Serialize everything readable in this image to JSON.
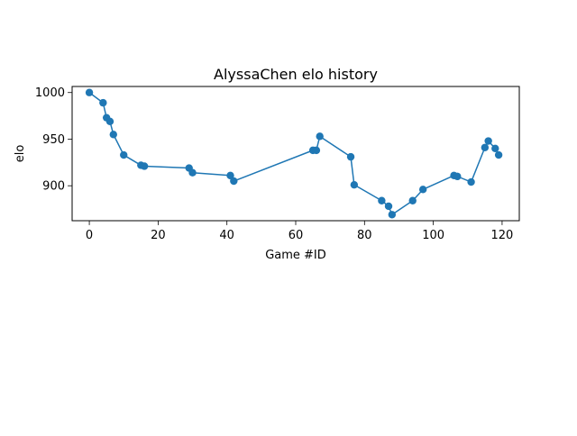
{
  "chart_data": {
    "type": "line",
    "title": "AlyssaChen elo history",
    "xlabel": "Game #ID",
    "ylabel": "elo",
    "xlim": [
      -5,
      125
    ],
    "ylim": [
      862.5,
      1006.5
    ],
    "xticks": [
      0,
      20,
      40,
      60,
      80,
      100,
      120
    ],
    "xtick_labels": [
      "0",
      "20",
      "40",
      "60",
      "80",
      "100",
      "120"
    ],
    "yticks": [
      900,
      950,
      1000
    ],
    "ytick_labels": [
      "900",
      "950",
      "1000"
    ],
    "grid": false,
    "marker": "circle",
    "color": "#1f77b4",
    "series": [
      {
        "x": [
          0,
          4,
          5,
          6,
          7,
          10,
          15,
          16,
          29,
          30,
          41,
          42,
          65,
          66,
          67,
          76,
          77,
          85,
          87,
          88,
          94,
          97,
          106,
          107,
          111,
          115,
          116,
          118,
          119
        ],
        "y": [
          1000,
          989,
          973,
          969,
          955,
          933,
          922,
          921,
          919,
          914,
          911,
          905,
          938,
          938,
          953,
          931,
          901,
          884,
          878,
          869,
          884,
          896,
          911,
          910,
          904,
          941,
          948,
          940,
          933
        ]
      }
    ]
  }
}
